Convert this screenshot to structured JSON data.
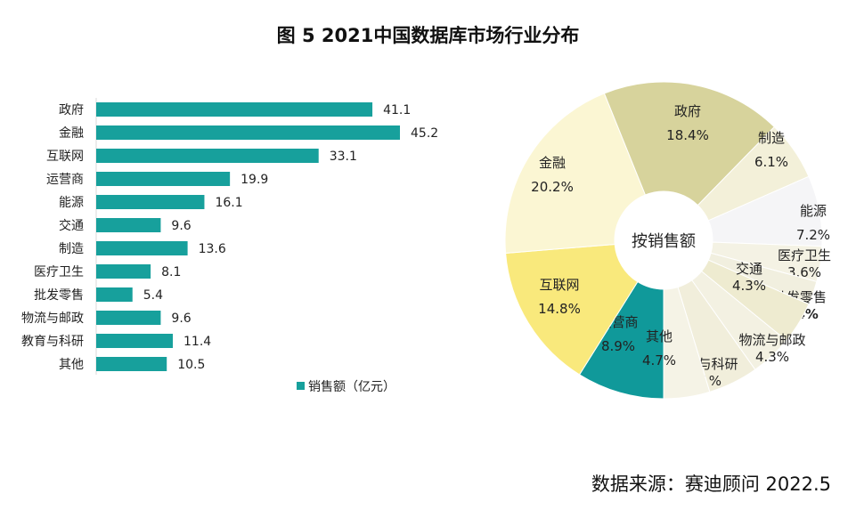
{
  "title": "图 5  2021中国数据库市场行业分布",
  "source": "数据来源：赛迪顾问  2022.5",
  "chart_data": [
    {
      "type": "bar",
      "orientation": "horizontal",
      "categories": [
        "政府",
        "金融",
        "互联网",
        "运营商",
        "能源",
        "交通",
        "制造",
        "医疗卫生",
        "批发零售",
        "物流与邮政",
        "教育与科研",
        "其他"
      ],
      "series": [
        {
          "name": "销售额（亿元）",
          "values": [
            41.1,
            45.2,
            33.1,
            19.9,
            16.1,
            9.6,
            13.6,
            8.1,
            5.4,
            9.6,
            11.4,
            10.5
          ],
          "color": "#17a09c"
        }
      ],
      "data_labels": [
        "41.1",
        "45.2",
        "33.1",
        "19.9",
        "16.1",
        "9.6",
        "13.6",
        "8.1",
        "5.4",
        "9.6",
        "11.4",
        "10.5"
      ],
      "legend": {
        "label": "销售额（亿元）",
        "placement": "bottom-right"
      },
      "xlim": [
        0,
        46
      ],
      "grid": false
    },
    {
      "type": "pie",
      "donut": true,
      "center_label": "按销售额",
      "slices": [
        {
          "label": "运营商",
          "value": 8.9,
          "text": "8.9%",
          "color": "#10999a"
        },
        {
          "label": "互联网",
          "value": 14.8,
          "text": "14.8%",
          "color": "#f9e97c"
        },
        {
          "label": "金融",
          "value": 20.2,
          "text": "20.2%",
          "color": "#fbf6d3"
        },
        {
          "label": "政府",
          "value": 18.4,
          "text": "18.4%",
          "color": "#d7d39c"
        },
        {
          "label": "制造",
          "value": 6.1,
          "text": "6.1%",
          "color": "#f3f0d9"
        },
        {
          "label": "能源",
          "value": 7.2,
          "text": "7.2%",
          "color": "#f5f5f7"
        },
        {
          "label": "医疗卫生",
          "value": 3.6,
          "text": "3.6%",
          "color": "#f4f2e4"
        },
        {
          "label": "批发零售",
          "value": 2.4,
          "text": "2.4%",
          "color": "#f1efdf"
        },
        {
          "label": "交通",
          "value": 4.3,
          "text": "4.3%",
          "color": "#eeebd0"
        },
        {
          "label": "物流与邮政",
          "value": 4.3,
          "text": "4.3%",
          "color": "#f3f1e2"
        },
        {
          "label": "教育与科研",
          "value": 5.1,
          "text": "5.1%",
          "color": "#f1eedb"
        },
        {
          "label": "其他",
          "value": 4.7,
          "text": "4.7%",
          "color": "#f5f3e6"
        }
      ]
    }
  ]
}
